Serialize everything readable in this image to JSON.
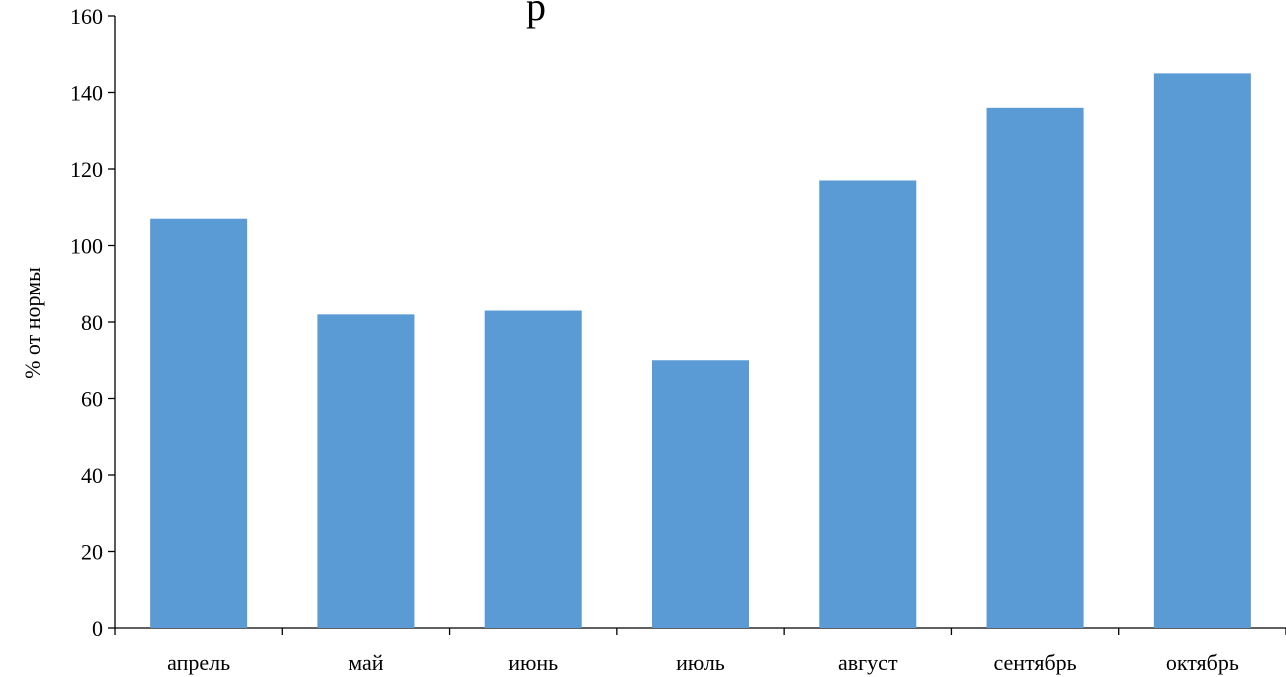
{
  "chart_data": {
    "type": "bar",
    "title": "р",
    "xlabel": "",
    "ylabel": "% от нормы",
    "categories": [
      "апрель",
      "май",
      "июнь",
      "июль",
      "август",
      "сентябрь",
      "октябрь"
    ],
    "values": [
      107,
      82,
      83,
      70,
      117,
      136,
      145
    ],
    "ylim": [
      0,
      160
    ],
    "yticks": [
      0,
      20,
      40,
      60,
      80,
      100,
      120,
      140,
      160
    ],
    "grid": false,
    "legend": "none",
    "bar_color": "#5B9BD5",
    "axis_color": "#000000"
  }
}
